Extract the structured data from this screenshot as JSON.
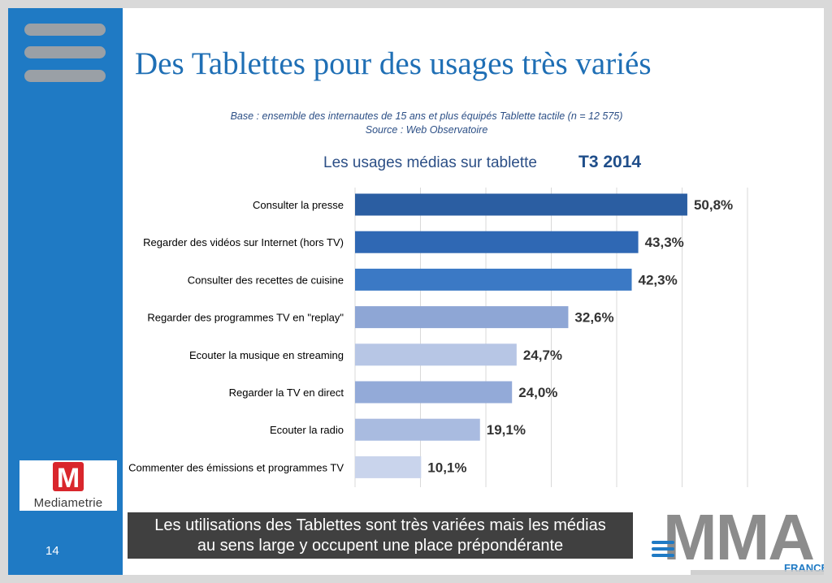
{
  "slide": {
    "title": "Des Tablettes pour des usages très variés",
    "base_line": "Base : ensemble des internautes de 15 ans et plus équipés Tablette tactile (n = 12 575)",
    "source_line": "Source : Web Observatoire",
    "page_number": "14",
    "callout_line1": "Les utilisations des Tablettes sont très variées mais les médias",
    "callout_line2": "au sens large y occupent une place prépondérante"
  },
  "logos": {
    "mediametrie_mark": "M",
    "mediametrie_name": "Mediametrie",
    "mma_text": "MMA",
    "mma_sub": "FRANCE"
  },
  "chart_data": {
    "type": "bar",
    "orientation": "horizontal",
    "title": "Les usages médias sur tablette",
    "period": "T3 2014",
    "categories": [
      "Consulter la presse",
      "Regarder des vidéos sur Internet (hors TV)",
      "Consulter des recettes de cuisine",
      "Regarder des programmes TV en \"replay\"",
      "Ecouter la musique en streaming",
      "Regarder la TV en direct",
      "Ecouter la radio",
      "Commenter des émissions et programmes TV"
    ],
    "values": [
      50.8,
      43.3,
      42.3,
      32.6,
      24.7,
      24.0,
      19.1,
      10.1
    ],
    "value_labels": [
      "50,8%",
      "43,3%",
      "42,3%",
      "32,6%",
      "24,7%",
      "24,0%",
      "19,1%",
      "10,1%"
    ],
    "bar_colors": [
      "#2b5ea2",
      "#2f68b4",
      "#3b79c5",
      "#8ea6d5",
      "#b7c6e5",
      "#93aad8",
      "#a9bbe0",
      "#c9d4ec"
    ],
    "xlim": [
      0,
      60
    ],
    "grid": true,
    "legend": "none"
  },
  "colors": {
    "sidebar": "#1f7ac4",
    "title": "#1f6fb5",
    "callout_bg": "#404040"
  }
}
